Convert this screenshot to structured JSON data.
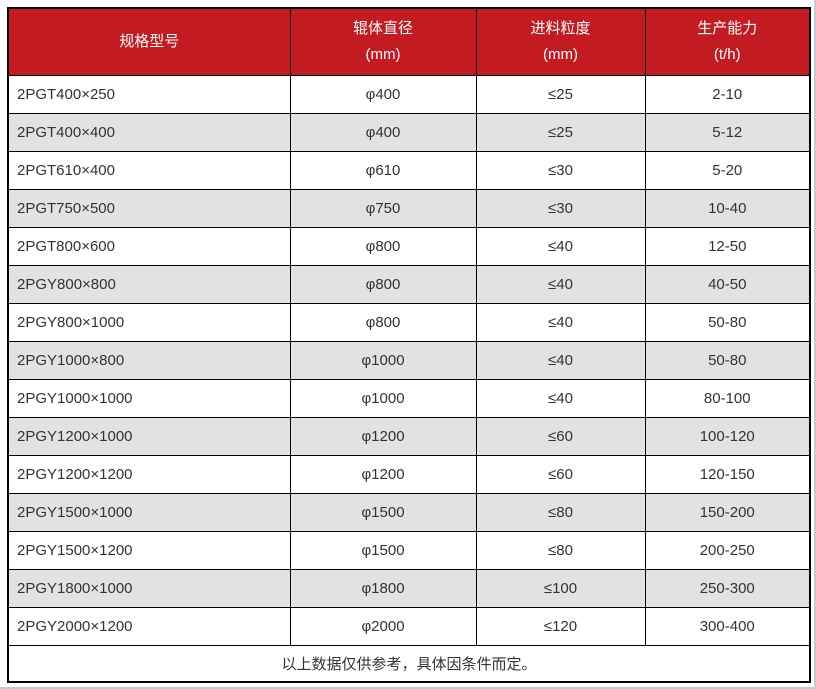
{
  "colors": {
    "header_bg": "#c21c22",
    "header_text": "#ffffff",
    "stripe_bg": "#e2e2e2",
    "body_text": "#333333",
    "border": "#000000"
  },
  "table": {
    "header": {
      "col1": "规格型号",
      "col2_line1": "辊体直径",
      "col2_line2": "(mm)",
      "col3_line1": "进料粒度",
      "col3_line2": "(mm)",
      "col4_line1": "生产能力",
      "col4_line2": "(t/h)"
    },
    "rows": [
      {
        "model": "2PGT400×250",
        "diameter": "φ400",
        "feed": "≤25",
        "capacity": "2-10"
      },
      {
        "model": "2PGT400×400",
        "diameter": "φ400",
        "feed": "≤25",
        "capacity": "5-12"
      },
      {
        "model": "2PGT610×400",
        "diameter": "φ610",
        "feed": "≤30",
        "capacity": "5-20"
      },
      {
        "model": "2PGT750×500",
        "diameter": "φ750",
        "feed": "≤30",
        "capacity": "10-40"
      },
      {
        "model": "2PGT800×600",
        "diameter": "φ800",
        "feed": "≤40",
        "capacity": "12-50"
      },
      {
        "model": "2PGY800×800",
        "diameter": "φ800",
        "feed": "≤40",
        "capacity": "40-50"
      },
      {
        "model": "2PGY800×1000",
        "diameter": "φ800",
        "feed": "≤40",
        "capacity": "50-80"
      },
      {
        "model": "2PGY1000×800",
        "diameter": "φ1000",
        "feed": "≤40",
        "capacity": "50-80"
      },
      {
        "model": "2PGY1000×1000",
        "diameter": "φ1000",
        "feed": "≤40",
        "capacity": "80-100"
      },
      {
        "model": "2PGY1200×1000",
        "diameter": "φ1200",
        "feed": "≤60",
        "capacity": "100-120"
      },
      {
        "model": "2PGY1200×1200",
        "diameter": "φ1200",
        "feed": "≤60",
        "capacity": "120-150"
      },
      {
        "model": "2PGY1500×1000",
        "diameter": "φ1500",
        "feed": "≤80",
        "capacity": "150-200"
      },
      {
        "model": "2PGY1500×1200",
        "diameter": "φ1500",
        "feed": "≤80",
        "capacity": "200-250"
      },
      {
        "model": "2PGY1800×1000",
        "diameter": "φ1800",
        "feed": "≤100",
        "capacity": "250-300"
      },
      {
        "model": "2PGY2000×1200",
        "diameter": "φ2000",
        "feed": "≤120",
        "capacity": "300-400"
      }
    ],
    "footer": "以上数据仅供参考，具体因条件而定。"
  }
}
